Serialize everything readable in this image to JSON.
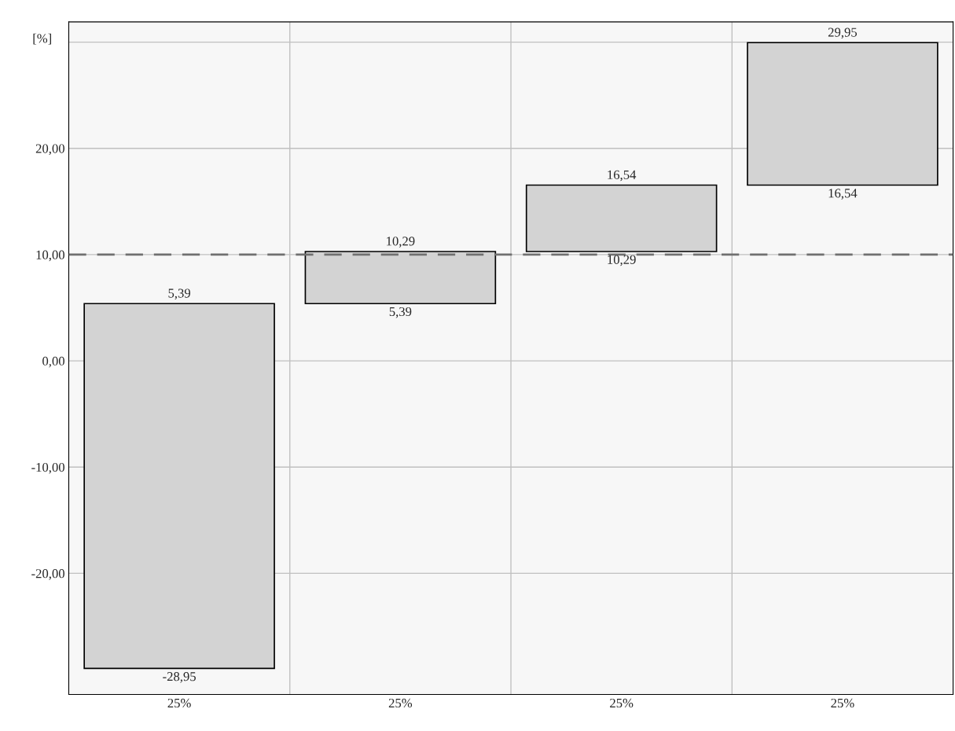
{
  "chart_data": {
    "type": "bar",
    "ylabel": "[%]",
    "categories": [
      "25%",
      "25%",
      "25%",
      "25%"
    ],
    "base": [
      -28.95,
      5.39,
      10.29,
      16.54
    ],
    "values": [
      34.34,
      4.9,
      6.25,
      13.41
    ],
    "color": "#d3d3d3",
    "ylim": [
      -31.4,
      31.9
    ],
    "yticks": [
      {
        "value": -20,
        "label": "-20,00"
      },
      {
        "value": -10,
        "label": "-10,00"
      },
      {
        "value": 0,
        "label": "0,00"
      },
      {
        "value": 10,
        "label": "10,00"
      },
      {
        "value": 20,
        "label": "20,00"
      },
      {
        "value": 30,
        "label": null
      }
    ],
    "grid": true,
    "ref_lines": [
      {
        "axis": "y",
        "value": 10,
        "color": "#707070",
        "line_style": "dashed"
      }
    ],
    "annotations": [
      "5,39",
      "-28,95",
      "10,29",
      "5,39",
      "16,54",
      "10,29",
      "29,95",
      "16,54"
    ]
  }
}
